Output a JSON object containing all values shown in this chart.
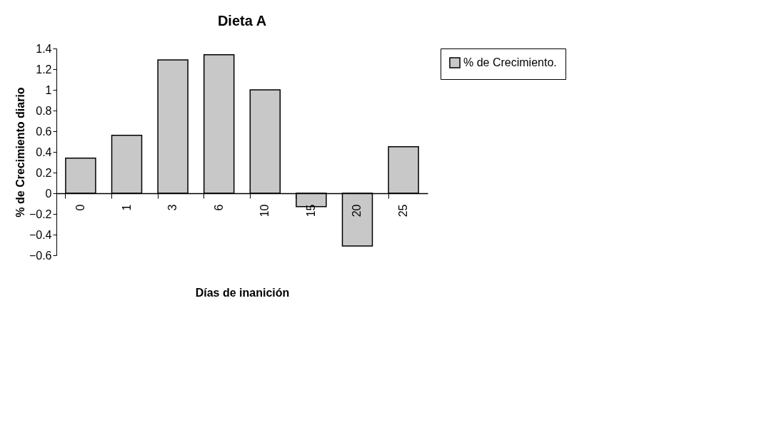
{
  "chart_data": {
    "type": "bar",
    "title": "Dieta  A",
    "xlabel": "Días de inanición",
    "ylabel": "% de Crecimiento diario",
    "categories": [
      "0",
      "1",
      "3",
      "6",
      "10",
      "15",
      "20",
      "25"
    ],
    "series": [
      {
        "name": "% de Crecimiento.",
        "color": "#c8c8c8",
        "values": [
          0.34,
          0.56,
          1.29,
          1.34,
          1.0,
          -0.13,
          -0.51,
          0.45
        ]
      }
    ],
    "ylim": [
      -0.6,
      1.4
    ],
    "yticks": [
      -0.6,
      -0.4,
      -0.2,
      0,
      0.2,
      0.4,
      0.6,
      0.8,
      1,
      1.2,
      1.4
    ],
    "grid": false,
    "legend": "right"
  }
}
